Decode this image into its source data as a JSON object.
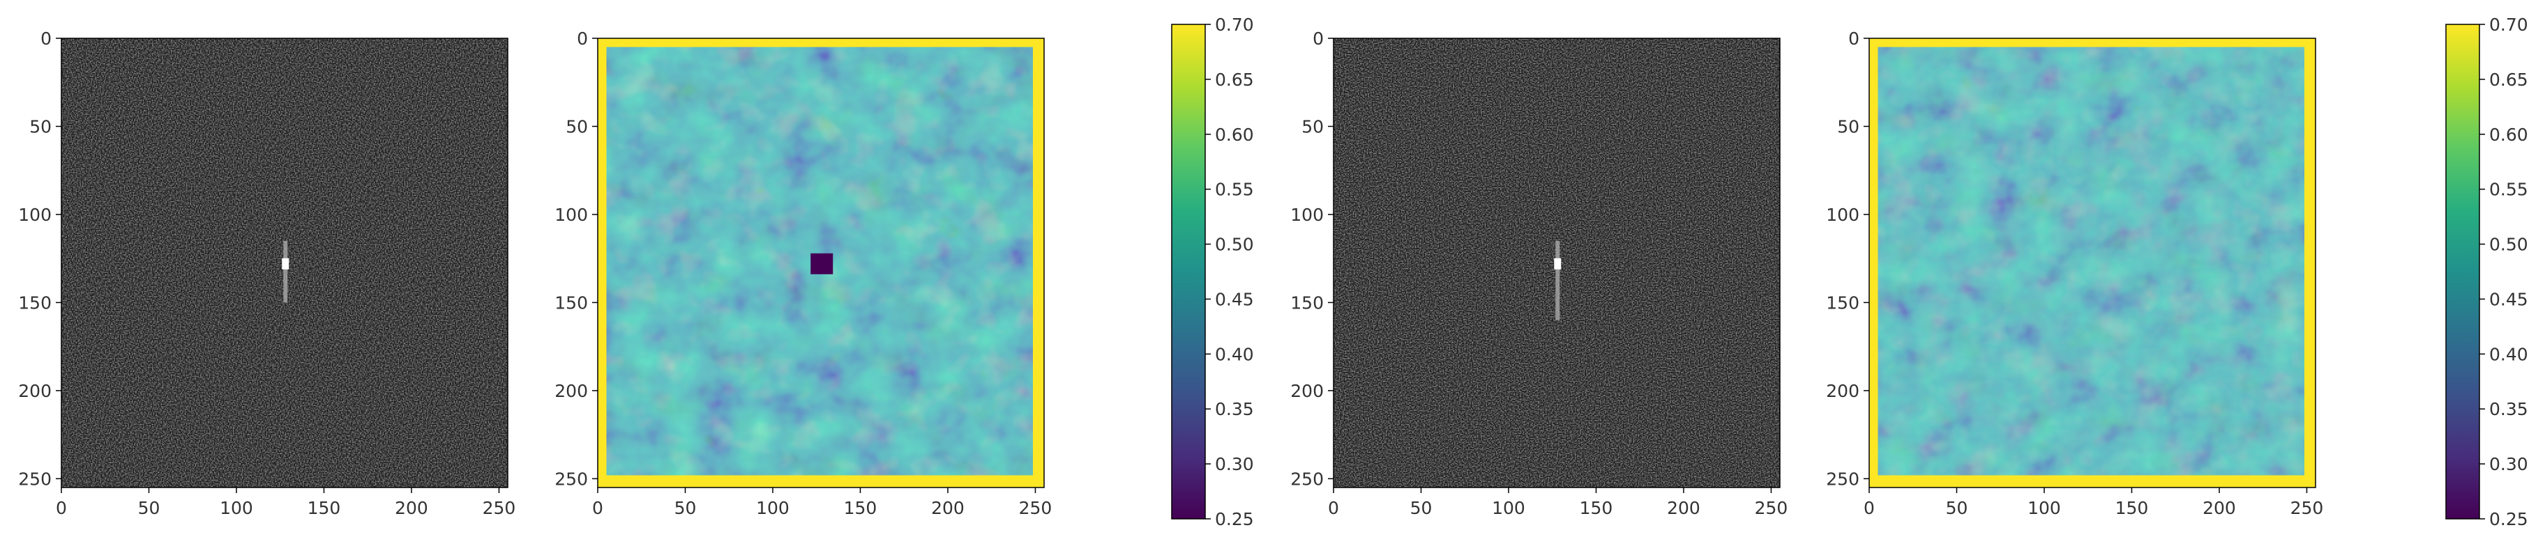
{
  "chart_data": [
    {
      "type": "heatmap",
      "colormap": "gray",
      "description_visible": "speckle noise image with a bright vertical point target",
      "xlim": [
        0,
        255
      ],
      "ylim": [
        255,
        0
      ],
      "x_ticks": [
        0,
        50,
        100,
        150,
        200,
        250
      ],
      "y_ticks": [
        0,
        50,
        100,
        150,
        200,
        250
      ],
      "feature": {
        "x": 128,
        "y": 128,
        "y_extent": [
          115,
          150
        ]
      }
    },
    {
      "type": "heatmap",
      "colormap": "viridis",
      "xlim": [
        0,
        255
      ],
      "ylim": [
        255,
        0
      ],
      "x_ticks": [
        0,
        50,
        100,
        150,
        200,
        250
      ],
      "y_ticks": [
        0,
        50,
        100,
        150,
        200,
        250
      ],
      "border_value": 0.7,
      "border_width_px": 8,
      "feature": {
        "x": 128,
        "y": 128,
        "value": 0.25
      },
      "colorbar": {
        "min": 0.25,
        "max": 0.7,
        "ticks": [
          "0.70",
          "0.65",
          "0.60",
          "0.55",
          "0.50",
          "0.45",
          "0.40",
          "0.35",
          "0.30",
          "0.25"
        ]
      }
    },
    {
      "type": "heatmap",
      "colormap": "gray",
      "xlim": [
        0,
        255
      ],
      "ylim": [
        255,
        0
      ],
      "x_ticks": [
        0,
        50,
        100,
        150,
        200,
        250
      ],
      "y_ticks": [
        0,
        50,
        100,
        150,
        200,
        250
      ],
      "feature": {
        "x": 128,
        "y": 128,
        "y_extent": [
          115,
          160
        ]
      }
    },
    {
      "type": "heatmap",
      "colormap": "viridis",
      "xlim": [
        0,
        255
      ],
      "ylim": [
        255,
        0
      ],
      "x_ticks": [
        0,
        50,
        100,
        150,
        200,
        250
      ],
      "y_ticks": [
        0,
        50,
        100,
        150,
        200,
        250
      ],
      "border_value": 0.7,
      "border_width_px": 8,
      "colorbar": {
        "min": 0.25,
        "max": 0.7,
        "ticks": [
          "0.70",
          "0.65",
          "0.60",
          "0.55",
          "0.50",
          "0.45",
          "0.40",
          "0.35",
          "0.30",
          "0.25"
        ]
      }
    }
  ]
}
